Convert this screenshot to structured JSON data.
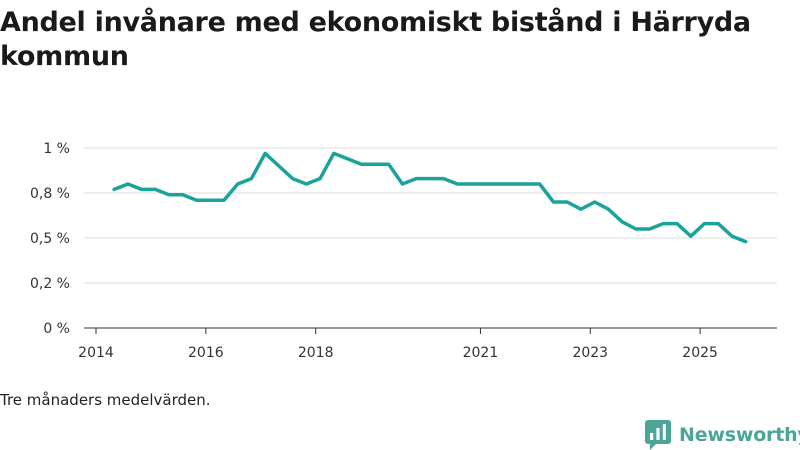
{
  "chart_data": {
    "type": "line",
    "title": "Andel invånare med ekonomiskt bistånd i Härryda kommun",
    "xlabel": "",
    "ylabel": "",
    "ylim": [
      0,
      1.0
    ],
    "xlim": [
      2014,
      2026.4
    ],
    "y_ticks": [
      {
        "value": 0,
        "label": "0 %"
      },
      {
        "value": 0.25,
        "label": "0,2 %"
      },
      {
        "value": 0.5,
        "label": "0,5 %"
      },
      {
        "value": 0.75,
        "label": "0,8 %"
      },
      {
        "value": 1.0,
        "label": "1 %"
      }
    ],
    "x_ticks": [
      {
        "value": 2014,
        "label": "2014"
      },
      {
        "value": 2016,
        "label": "2016"
      },
      {
        "value": 2018,
        "label": "2018"
      },
      {
        "value": 2021,
        "label": "2021"
      },
      {
        "value": 2023,
        "label": "2023"
      },
      {
        "value": 2025,
        "label": "2025"
      }
    ],
    "grid": true,
    "color": "#1aa39a",
    "series": [
      {
        "name": "Andel invånare med ekonomiskt bistånd",
        "x": [
          2014.33,
          2014.58,
          2014.83,
          2015.08,
          2015.33,
          2015.58,
          2015.83,
          2016.08,
          2016.33,
          2016.58,
          2016.83,
          2017.08,
          2017.33,
          2017.58,
          2017.83,
          2018.08,
          2018.33,
          2018.58,
          2018.83,
          2019.08,
          2019.33,
          2019.58,
          2019.83,
          2020.08,
          2020.33,
          2020.58,
          2020.83,
          2021.08,
          2021.33,
          2021.58,
          2021.83,
          2022.08,
          2022.33,
          2022.58,
          2022.83,
          2023.08,
          2023.33,
          2023.58,
          2023.83,
          2024.08,
          2024.33,
          2024.58,
          2024.83,
          2025.08,
          2025.33,
          2025.58,
          2025.83
        ],
        "values": [
          0.77,
          0.8,
          0.77,
          0.77,
          0.74,
          0.74,
          0.71,
          0.71,
          0.71,
          0.8,
          0.83,
          0.97,
          0.9,
          0.83,
          0.8,
          0.83,
          0.97,
          0.94,
          0.91,
          0.91,
          0.91,
          0.8,
          0.83,
          0.83,
          0.83,
          0.8,
          0.8,
          0.8,
          0.8,
          0.8,
          0.8,
          0.8,
          0.7,
          0.7,
          0.66,
          0.7,
          0.66,
          0.59,
          0.55,
          0.55,
          0.58,
          0.58,
          0.51,
          0.58,
          0.58,
          0.51,
          0.48
        ]
      }
    ]
  },
  "caption": "Tre månaders medelvärden.",
  "brand": {
    "name": "Newsworthy",
    "color": "#4da598"
  }
}
